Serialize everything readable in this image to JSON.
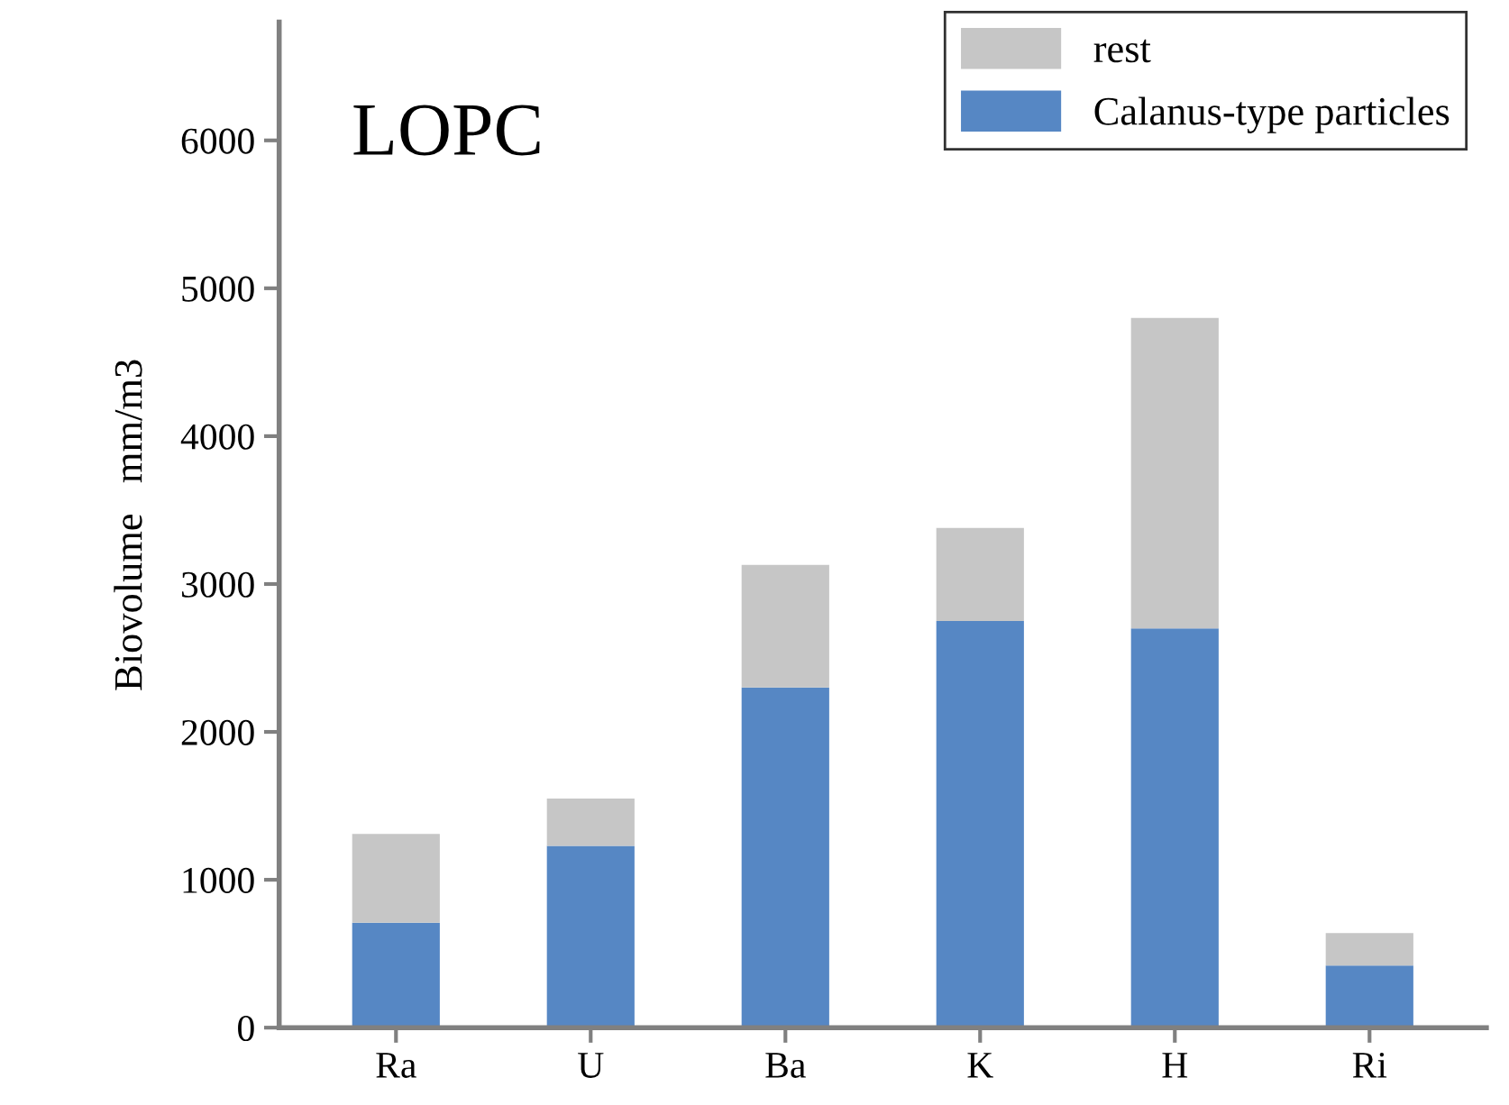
{
  "chart_data": {
    "type": "bar",
    "title": "LOPC",
    "ylabel": "Biovolume   mm/m3",
    "categories": [
      "Ra",
      "U",
      "Ba",
      "K",
      "H",
      "Ri"
    ],
    "stacked": true,
    "series": [
      {
        "name": "Calanus-type particles",
        "color": "#5687c4",
        "values": [
          710,
          1230,
          2300,
          2750,
          2700,
          420
        ]
      },
      {
        "name": "rest",
        "color": "#c6c6c6",
        "values": [
          600,
          320,
          830,
          630,
          2100,
          220
        ]
      }
    ],
    "ylim": [
      0,
      6800
    ],
    "yticks": [
      0,
      1000,
      2000,
      3000,
      4000,
      5000,
      6000
    ],
    "grid": false,
    "legend": "top right"
  }
}
